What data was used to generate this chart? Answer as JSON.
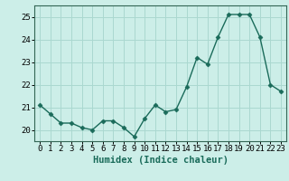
{
  "x": [
    0,
    1,
    2,
    3,
    4,
    5,
    6,
    7,
    8,
    9,
    10,
    11,
    12,
    13,
    14,
    15,
    16,
    17,
    18,
    19,
    20,
    21,
    22,
    23
  ],
  "y": [
    21.1,
    20.7,
    20.3,
    20.3,
    20.1,
    20.0,
    20.4,
    20.4,
    20.1,
    19.7,
    20.5,
    21.1,
    20.8,
    20.9,
    21.9,
    23.2,
    22.9,
    24.1,
    25.1,
    25.1,
    25.1,
    24.1,
    22.0,
    21.7
  ],
  "line_color": "#1a6b5a",
  "marker": "D",
  "markersize": 2.5,
  "linewidth": 1.0,
  "background_color": "#cceee8",
  "grid_color": "#aad8d0",
  "xlabel": "Humidex (Indice chaleur)",
  "xlim": [
    -0.5,
    23.5
  ],
  "ylim": [
    19.5,
    25.5
  ],
  "yticks": [
    20,
    21,
    22,
    23,
    24,
    25
  ],
  "xticks": [
    0,
    1,
    2,
    3,
    4,
    5,
    6,
    7,
    8,
    9,
    10,
    11,
    12,
    13,
    14,
    15,
    16,
    17,
    18,
    19,
    20,
    21,
    22,
    23
  ],
  "xlabel_fontsize": 7.5,
  "tick_fontsize": 6.5,
  "spine_color": "#336655"
}
